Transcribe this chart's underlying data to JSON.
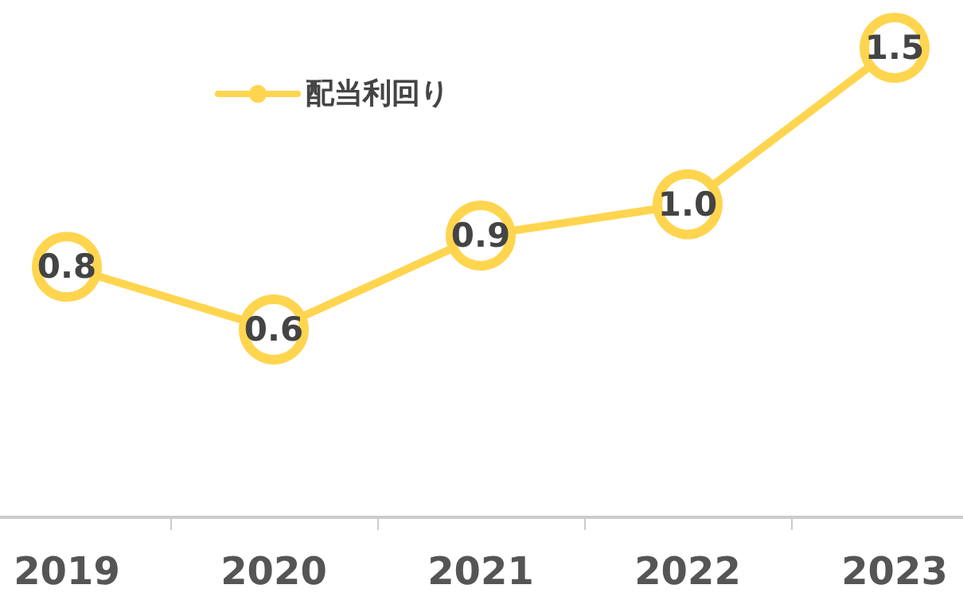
{
  "chart_data": {
    "type": "line",
    "categories": [
      "2019",
      "2020",
      "2021",
      "2022",
      "2023"
    ],
    "series": [
      {
        "name": "配当利回り",
        "color": "#ffd54f",
        "values": [
          0.8,
          0.6,
          0.9,
          1.0,
          1.5
        ],
        "value_labels": [
          "0.8",
          "0.6",
          "0.9",
          "1.0",
          "1.5"
        ]
      }
    ],
    "legend": "top left",
    "marker": "circle",
    "line_style": "solid",
    "grid": false
  }
}
